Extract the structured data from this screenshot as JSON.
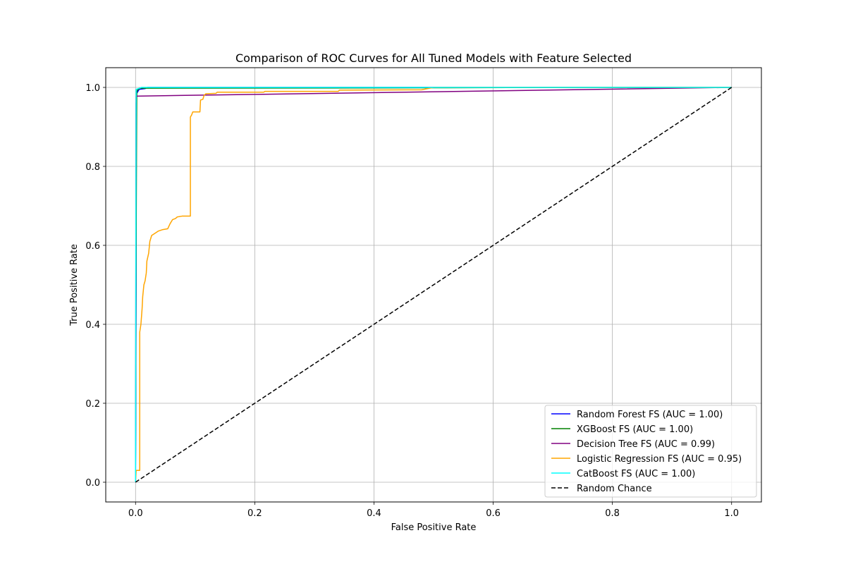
{
  "chart_data": {
    "type": "line",
    "title": "Comparison of ROC Curves for All Tuned Models with Feature Selected",
    "xlabel": "False Positive Rate",
    "ylabel": "True Positive Rate",
    "xlim": [
      -0.05,
      1.05
    ],
    "ylim": [
      -0.05,
      1.05
    ],
    "xticks": [
      0.0,
      0.2,
      0.4,
      0.6,
      0.8,
      1.0
    ],
    "yticks": [
      0.0,
      0.2,
      0.4,
      0.6,
      0.8,
      1.0
    ],
    "xtick_labels": [
      "0.0",
      "0.2",
      "0.4",
      "0.6",
      "0.8",
      "1.0"
    ],
    "ytick_labels": [
      "0.0",
      "0.2",
      "0.4",
      "0.6",
      "0.8",
      "1.0"
    ],
    "grid": true,
    "legend_position": "lower-right",
    "series": [
      {
        "name": "Random Forest FS (AUC = 1.00)",
        "color": "#0000ff",
        "dashed": false,
        "points": [
          [
            0,
            0
          ],
          [
            0.0,
            0.04
          ],
          [
            0.001,
            0.5
          ],
          [
            0.001,
            0.96
          ],
          [
            0.002,
            0.985
          ],
          [
            0.004,
            0.99
          ],
          [
            0.006,
            0.995
          ],
          [
            0.016,
            0.997
          ],
          [
            0.02,
            1.0
          ],
          [
            1.0,
            1.0
          ]
        ]
      },
      {
        "name": "XGBoost FS (AUC = 1.00)",
        "color": "#008000",
        "dashed": false,
        "points": [
          [
            0,
            0
          ],
          [
            0.0,
            0.03
          ],
          [
            0.001,
            0.6
          ],
          [
            0.002,
            0.99
          ],
          [
            0.004,
            0.995
          ],
          [
            0.008,
            0.998
          ],
          [
            0.5,
            0.999
          ],
          [
            0.71,
            1.0
          ],
          [
            1.0,
            1.0
          ]
        ]
      },
      {
        "name": "Decision Tree FS (AUC = 0.99)",
        "color": "#800080",
        "dashed": false,
        "points": [
          [
            0,
            0
          ],
          [
            0.001,
            0.978
          ],
          [
            1.0,
            1.0
          ]
        ]
      },
      {
        "name": "Logistic Regression FS (AUC = 0.95)",
        "color": "#ffa500",
        "dashed": false,
        "points": [
          [
            0,
            0
          ],
          [
            0.001,
            0.03
          ],
          [
            0.007,
            0.03
          ],
          [
            0.007,
            0.38
          ],
          [
            0.009,
            0.4
          ],
          [
            0.01,
            0.42
          ],
          [
            0.011,
            0.44
          ],
          [
            0.012,
            0.47
          ],
          [
            0.014,
            0.5
          ],
          [
            0.016,
            0.51
          ],
          [
            0.018,
            0.53
          ],
          [
            0.019,
            0.56
          ],
          [
            0.022,
            0.58
          ],
          [
            0.024,
            0.61
          ],
          [
            0.027,
            0.625
          ],
          [
            0.032,
            0.63
          ],
          [
            0.038,
            0.636
          ],
          [
            0.046,
            0.64
          ],
          [
            0.054,
            0.642
          ],
          [
            0.058,
            0.655
          ],
          [
            0.062,
            0.665
          ],
          [
            0.067,
            0.668
          ],
          [
            0.07,
            0.672
          ],
          [
            0.078,
            0.674
          ],
          [
            0.092,
            0.674
          ],
          [
            0.092,
            0.925
          ],
          [
            0.094,
            0.93
          ],
          [
            0.096,
            0.938
          ],
          [
            0.108,
            0.938
          ],
          [
            0.109,
            0.968
          ],
          [
            0.113,
            0.97
          ],
          [
            0.115,
            0.98
          ],
          [
            0.118,
            0.984
          ],
          [
            0.135,
            0.985
          ],
          [
            0.137,
            0.988
          ],
          [
            0.215,
            0.988
          ],
          [
            0.217,
            0.99
          ],
          [
            0.34,
            0.99
          ],
          [
            0.342,
            0.993
          ],
          [
            0.48,
            0.994
          ],
          [
            0.5,
            1.0
          ],
          [
            1.0,
            1.0
          ]
        ]
      },
      {
        "name": "CatBoost FS (AUC = 1.00)",
        "color": "#00ffff",
        "dashed": false,
        "points": [
          [
            0,
            0
          ],
          [
            0.0,
            0.03
          ],
          [
            0.0005,
            0.6
          ],
          [
            0.001,
            0.995
          ],
          [
            0.01,
            1.0
          ],
          [
            1.0,
            1.0
          ]
        ]
      },
      {
        "name": "Random Chance",
        "color": "#000000",
        "dashed": true,
        "points": [
          [
            0,
            0
          ],
          [
            1,
            1
          ]
        ]
      }
    ]
  }
}
